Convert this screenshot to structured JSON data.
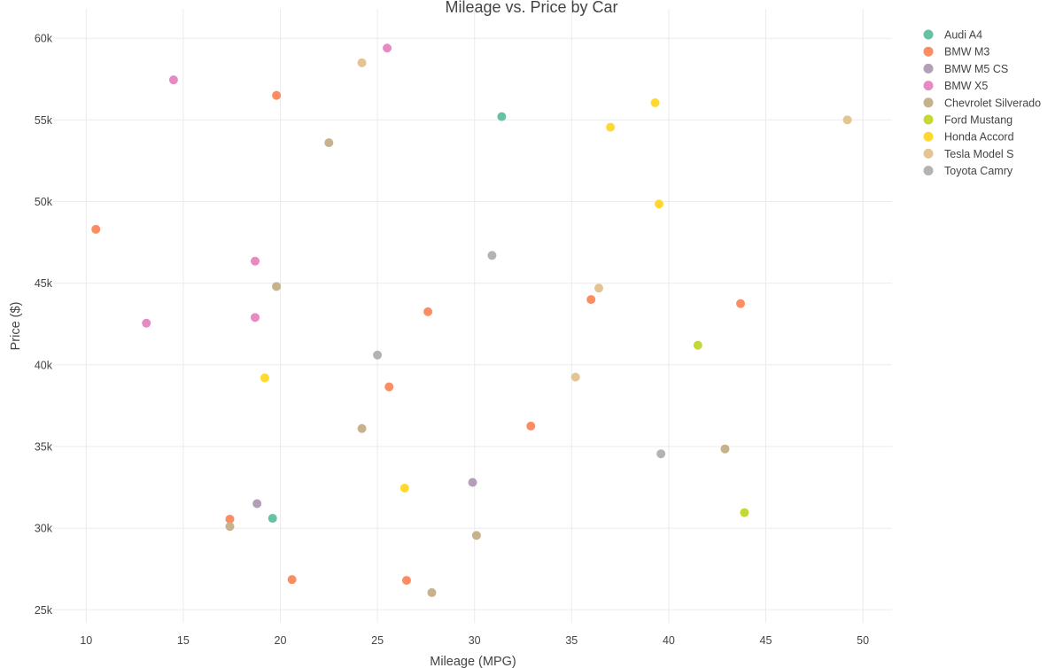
{
  "chart_data": {
    "type": "scatter",
    "title": "Mileage vs. Price by Car",
    "xlabel": "Mileage (MPG)",
    "ylabel": "Price ($)",
    "xlim": [
      8.3,
      51.5
    ],
    "ylim": [
      24200,
      61800
    ],
    "x_ticks": [
      10,
      15,
      20,
      25,
      30,
      35,
      40,
      45,
      50
    ],
    "x_tick_labels": [
      "10",
      "15",
      "20",
      "25",
      "30",
      "35",
      "40",
      "45",
      "50"
    ],
    "y_ticks": [
      25000,
      30000,
      35000,
      40000,
      45000,
      50000,
      55000,
      60000
    ],
    "y_tick_labels": [
      "25k",
      "30k",
      "35k",
      "40k",
      "45k",
      "50k",
      "55k",
      "60k"
    ],
    "grid": true,
    "legend_position": "top-right",
    "series": [
      {
        "name": "Audi A4",
        "color": "#66c2a5",
        "points": [
          [
            31.4,
            55200
          ],
          [
            19.6,
            30600
          ]
        ]
      },
      {
        "name": "BMW M3",
        "color": "#fc8d62",
        "points": [
          [
            19.8,
            56500
          ],
          [
            10.5,
            48300
          ],
          [
            27.6,
            43250
          ],
          [
            36.0,
            44000
          ],
          [
            43.7,
            43750
          ],
          [
            25.6,
            38650
          ],
          [
            32.9,
            36250
          ],
          [
            17.4,
            30550
          ],
          [
            20.6,
            26850
          ],
          [
            26.5,
            26800
          ]
        ]
      },
      {
        "name": "BMW M5 CS",
        "color": "#b3a0b8",
        "points": [
          [
            29.9,
            32800
          ],
          [
            18.8,
            31500
          ]
        ]
      },
      {
        "name": "BMW X5",
        "color": "#e78ac3",
        "points": [
          [
            25.5,
            59400
          ],
          [
            14.5,
            57450
          ],
          [
            18.7,
            46350
          ],
          [
            18.7,
            42900
          ],
          [
            13.1,
            42550
          ]
        ]
      },
      {
        "name": "Chevrolet Silverado",
        "color": "#c7b28b",
        "points": [
          [
            22.5,
            53600
          ],
          [
            19.8,
            44800
          ],
          [
            24.2,
            36100
          ],
          [
            42.9,
            34850
          ],
          [
            17.4,
            30100
          ],
          [
            30.1,
            29550
          ],
          [
            27.8,
            26050
          ]
        ]
      },
      {
        "name": "Ford Mustang",
        "color": "#c4d936",
        "points": [
          [
            41.5,
            41200
          ],
          [
            43.9,
            30950
          ]
        ]
      },
      {
        "name": "Honda Accord",
        "color": "#ffd92f",
        "points": [
          [
            39.3,
            56050
          ],
          [
            37.0,
            54550
          ],
          [
            39.5,
            49850
          ],
          [
            19.2,
            39200
          ],
          [
            26.4,
            32450
          ]
        ]
      },
      {
        "name": "Tesla Model S",
        "color": "#e5c494",
        "points": [
          [
            24.2,
            58500
          ],
          [
            49.2,
            55000
          ],
          [
            36.4,
            44700
          ],
          [
            35.2,
            39250
          ]
        ]
      },
      {
        "name": "Toyota Camry",
        "color": "#b3b3b3",
        "points": [
          [
            30.9,
            46700
          ],
          [
            25.0,
            40600
          ],
          [
            39.6,
            34550
          ]
        ]
      }
    ]
  }
}
